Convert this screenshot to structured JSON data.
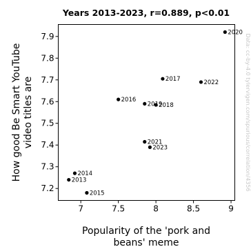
{
  "chart_data": {
    "type": "scatter",
    "title": "Years 2013-2023, r=0.889, p<0.01",
    "xlabel_lines": [
      "Popularity of the 'pork and",
      "beans' meme"
    ],
    "ylabel_lines": [
      "How good Be Smart YouTube",
      "video titles are"
    ],
    "xlim": [
      6.7,
      9.05
    ],
    "ylim": [
      7.145,
      7.955
    ],
    "xticks": [
      7,
      7.5,
      8,
      8.5,
      9
    ],
    "xtick_labels": [
      "7",
      "7.5",
      "8",
      "8.5",
      "9"
    ],
    "yticks": [
      7.2,
      7.3,
      7.4,
      7.5,
      7.6,
      7.7,
      7.8,
      7.9
    ],
    "ytick_labels": [
      "7.2",
      "7.3",
      "7.4",
      "7.5",
      "7.6",
      "7.7",
      "7.8",
      "7.9"
    ],
    "grid": false,
    "marker_color": "#000000",
    "points": [
      {
        "label": "2013",
        "x": 6.84,
        "y": 7.24
      },
      {
        "label": "2014",
        "x": 6.92,
        "y": 7.27
      },
      {
        "label": "2015",
        "x": 7.08,
        "y": 7.18
      },
      {
        "label": "2016",
        "x": 7.5,
        "y": 7.61
      },
      {
        "label": "2017",
        "x": 8.09,
        "y": 7.705
      },
      {
        "label": "2018",
        "x": 8.0,
        "y": 7.585
      },
      {
        "label": "2019",
        "x": 7.85,
        "y": 7.59
      },
      {
        "label": "2020",
        "x": 8.92,
        "y": 7.92
      },
      {
        "label": "2021",
        "x": 7.85,
        "y": 7.415
      },
      {
        "label": "2022",
        "x": 8.6,
        "y": 7.69
      },
      {
        "label": "2023",
        "x": 7.92,
        "y": 7.39
      }
    ]
  },
  "watermark": "Data: cc-by-4.0 tylervigen.com/spurious/correlation/4356"
}
